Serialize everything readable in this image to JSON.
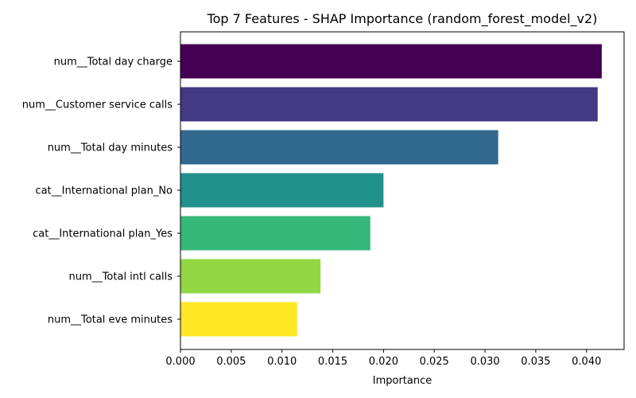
{
  "chart_data": {
    "type": "bar",
    "orientation": "horizontal",
    "title": "Top 7 Features - SHAP Importance (random_forest_model_v2)",
    "xlabel": "Importance",
    "ylabel": "",
    "categories": [
      "num__Total day charge",
      "num__Customer service calls",
      "num__Total day minutes",
      "cat__International plan_No",
      "cat__International plan_Yes",
      "num__Total intl calls",
      "num__Total eve minutes"
    ],
    "values": [
      0.0415,
      0.0411,
      0.0313,
      0.02,
      0.0187,
      0.0138,
      0.0115
    ],
    "colors": [
      "#440154",
      "#443983",
      "#31688e",
      "#21918c",
      "#35b779",
      "#90d743",
      "#fde725"
    ],
    "xlim": [
      0,
      0.0437
    ],
    "xticks": [
      "0.000",
      "0.005",
      "0.010",
      "0.015",
      "0.020",
      "0.025",
      "0.030",
      "0.035",
      "0.040"
    ],
    "grid": false,
    "legend": "none"
  }
}
